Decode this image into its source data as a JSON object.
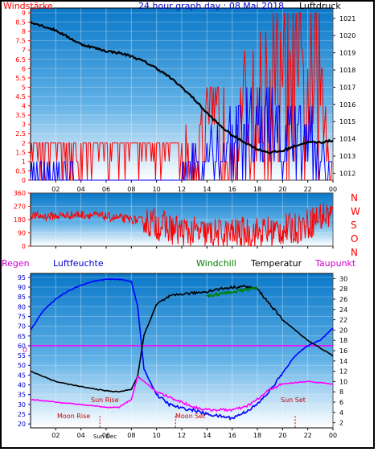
{
  "header": {
    "left_label": "Windstärke",
    "title": "24 hour graph day : 08 Mai 2018",
    "right_label": "Luftdruck"
  },
  "mid": {
    "compass_letters": [
      "N",
      "W",
      "S",
      "O",
      "N"
    ]
  },
  "legend": {
    "regen": "Regen",
    "luftfeuchte": "Luftfeuchte",
    "windchill": "Windchill",
    "temperatur": "Temperatur",
    "taupunkt": "Taupunkt"
  },
  "colors": {
    "background_top": "#0a78c8",
    "background_bottom": "#ffffff",
    "wind_gust": "#ff0000",
    "wind_avg": "#0000ff",
    "pressure": "#000000",
    "direction": "#ff0000",
    "humidity": "#0000ff",
    "temperature": "#000000",
    "dewpoint": "#ff00ff",
    "windchill": "#008000",
    "left_axis_text": "#ff0000",
    "compass_text": "#ff0000"
  },
  "chart_data": [
    {
      "type": "line",
      "name": "wind-pressure",
      "x_ticks": [
        "02",
        "04",
        "06",
        "08",
        "10",
        "12",
        "14",
        "16",
        "18",
        "20",
        "22",
        "00"
      ],
      "y_left_label": "Windstärke",
      "y_left_ticks": [
        0,
        0.5,
        1,
        1.5,
        2,
        2.5,
        3,
        3.5,
        4,
        4.5,
        5,
        5.5,
        6,
        6.5,
        7,
        7.5,
        8,
        8.5,
        9
      ],
      "ylim_left": [
        0,
        9
      ],
      "y_right_label": "Luftdruck",
      "y_right_ticks": [
        1012,
        1013,
        1014,
        1015,
        1016,
        1017,
        1018,
        1019,
        1020,
        1021
      ],
      "ylim_right": [
        1011.6,
        1021.6
      ],
      "series": [
        {
          "x": [
            0,
            2,
            4,
            6,
            7,
            8,
            9,
            10,
            11,
            12,
            13,
            14,
            15,
            16,
            17,
            18,
            19,
            20,
            21,
            22,
            23,
            24
          ],
          "values": [
            1020.8,
            1020.3,
            1019.5,
            1019.1,
            1019.0,
            1018.8,
            1018.5,
            1018.1,
            1017.6,
            1017.0,
            1016.3,
            1015.5,
            1014.8,
            1014.2,
            1013.8,
            1013.4,
            1013.2,
            1013.3,
            1013.6,
            1013.8,
            1013.8,
            1013.9
          ]
        }
      ],
      "wind_gust_max_by_hour": [
        2,
        2,
        2,
        2,
        2,
        2,
        2,
        2,
        2,
        2,
        2,
        2,
        2,
        2,
        2,
        2,
        2,
        2,
        2,
        2,
        2,
        2,
        2,
        2,
        3,
        3,
        3,
        4,
        5,
        5,
        5,
        6,
        6,
        6,
        7,
        7,
        8,
        8,
        9,
        9,
        9,
        9,
        9,
        9,
        9,
        9,
        7,
        4
      ],
      "wind_avg_max_by_hour": [
        1,
        1,
        1,
        1,
        1,
        1,
        1,
        0,
        0,
        0,
        0,
        0,
        0,
        0,
        0,
        0,
        0,
        0,
        0,
        0,
        0,
        0,
        0,
        0,
        1,
        2,
        2,
        2,
        3,
        3,
        3,
        4,
        4,
        4,
        5,
        5,
        5,
        5,
        5,
        4,
        4,
        4,
        4,
        4,
        4,
        3,
        2,
        1
      ]
    },
    {
      "type": "line",
      "name": "wind-direction",
      "x_ticks": [
        "02",
        "04",
        "06",
        "08",
        "10",
        "12",
        "14",
        "16",
        "18",
        "20",
        "22",
        "00"
      ],
      "y_ticks": [
        0,
        90,
        180,
        270,
        360
      ],
      "ylim": [
        0,
        360
      ],
      "series": [
        {
          "x": [
            0,
            1,
            2,
            3,
            4,
            5,
            6,
            7,
            8,
            9,
            10,
            11,
            12,
            13,
            14,
            15,
            16,
            17,
            18,
            19,
            20,
            21,
            22,
            23,
            24
          ],
          "values": [
            210,
            200,
            205,
            210,
            215,
            210,
            200,
            190,
            180,
            170,
            150,
            120,
            100,
            90,
            80,
            80,
            85,
            90,
            95,
            100,
            110,
            120,
            150,
            200,
            220
          ]
        }
      ]
    },
    {
      "type": "line",
      "name": "temperature-humidity",
      "x_ticks": [
        "02",
        "04",
        "06",
        "08",
        "10",
        "12",
        "14",
        "16",
        "18",
        "20",
        "22",
        "00"
      ],
      "y_left_ticks": [
        20,
        25,
        30,
        35,
        40,
        45,
        50,
        55,
        60,
        65,
        70,
        75,
        80,
        85,
        90,
        95
      ],
      "ylim_left": [
        18,
        97
      ],
      "y_right_ticks": [
        2,
        4,
        6,
        8,
        10,
        12,
        14,
        16,
        18,
        20,
        22,
        24,
        26,
        28,
        30
      ],
      "ylim_right": [
        1,
        31
      ],
      "zero_line_label": "0",
      "series": [
        {
          "name": "Luftfeuchte",
          "axis": "left",
          "x": [
            0,
            1,
            2,
            3,
            4,
            5,
            6,
            7,
            8,
            8.5,
            9,
            10,
            11,
            12,
            13,
            14,
            15,
            16,
            17,
            18,
            19,
            20,
            21,
            22,
            23,
            24
          ],
          "values": [
            68,
            78,
            84,
            88,
            91,
            93,
            94,
            94,
            93,
            80,
            48,
            35,
            30,
            28,
            27,
            25,
            24,
            23,
            26,
            30,
            37,
            46,
            55,
            60,
            63,
            69
          ]
        },
        {
          "name": "Temperatur",
          "axis": "right",
          "x": [
            0,
            1,
            2,
            3,
            4,
            5,
            6,
            7,
            8,
            8.5,
            9,
            10,
            11,
            12,
            13,
            14,
            15,
            16,
            17,
            18,
            19,
            20,
            21,
            22,
            23,
            24
          ],
          "values": [
            12,
            11,
            10,
            9.5,
            9,
            8.6,
            8.2,
            8,
            8.5,
            11,
            19,
            25,
            26.5,
            27,
            27.2,
            27.5,
            28,
            28.3,
            28.5,
            28,
            25,
            22,
            20,
            18,
            16.5,
            15
          ]
        },
        {
          "name": "Taupunkt",
          "axis": "right",
          "x": [
            0,
            1,
            2,
            3,
            4,
            5,
            6,
            7,
            8,
            8.5,
            9,
            10,
            11,
            12,
            13,
            14,
            15,
            16,
            17,
            18,
            19,
            20,
            21,
            22,
            23,
            24
          ],
          "values": [
            6.5,
            6.3,
            6,
            5.8,
            5.5,
            5.3,
            5,
            5,
            6.5,
            11,
            10,
            8,
            7,
            6,
            5,
            4.5,
            4.5,
            4.5,
            5,
            6.5,
            8.5,
            9.5,
            9.8,
            10,
            9.8,
            9.5
          ]
        },
        {
          "name": "Windchill",
          "axis": "right",
          "x": [
            14,
            14.5,
            15,
            15.5,
            16,
            16.5,
            17,
            17.5,
            18
          ],
          "values": [
            26.5,
            26.8,
            27,
            27.2,
            27.4,
            27.6,
            27.8,
            28,
            28.2
          ]
        }
      ],
      "annotations": {
        "sun_rise": "Sun Rise",
        "moon_rise": "Moon Rise",
        "moon_set": "Moon Set",
        "sun_set": "Sun Set",
        "sun_dec": "Sun Dec"
      }
    }
  ]
}
